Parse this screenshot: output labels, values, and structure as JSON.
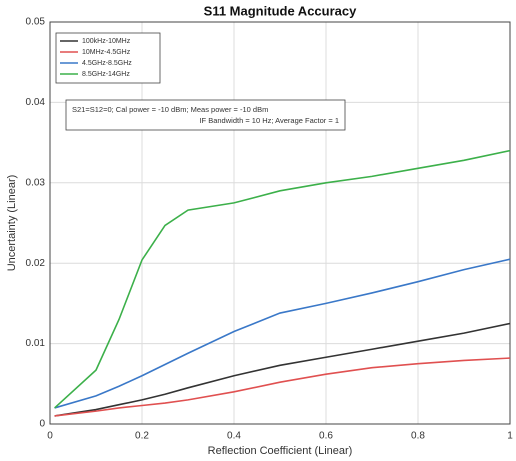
{
  "chart_data": {
    "type": "line",
    "title": "S11 Magnitude Accuracy",
    "xlabel": "Reflection Coefficient (Linear)",
    "ylabel": "Uncertainty (Linear)",
    "annotations": [
      "S21=S12=0;  Cal power = -10 dBm;  Meas power = -10 dBm",
      "IF Bandwidth = 10 Hz;  Average Factor = 1"
    ],
    "x": [
      0.01,
      0.1,
      0.15,
      0.2,
      0.25,
      0.3,
      0.4,
      0.5,
      0.6,
      0.7,
      0.8,
      0.9,
      1
    ],
    "series": [
      {
        "name": "100kHz-10MHz",
        "color": "#333333",
        "values": [
          0.001,
          0.0018,
          0.0024,
          0.003,
          0.0037,
          0.0045,
          0.006,
          0.0073,
          0.0083,
          0.0093,
          0.0103,
          0.0113,
          0.0125
        ]
      },
      {
        "name": "10MHz-4.5GHz",
        "color": "#e05050",
        "values": [
          0.001,
          0.0016,
          0.002,
          0.0023,
          0.0026,
          0.003,
          0.004,
          0.0052,
          0.0062,
          0.007,
          0.0075,
          0.0079,
          0.0082
        ]
      },
      {
        "name": "4.5GHz-8.5GHz",
        "color": "#3a78c8",
        "values": [
          0.002,
          0.0035,
          0.0047,
          0.006,
          0.0074,
          0.0088,
          0.0115,
          0.0138,
          0.015,
          0.0163,
          0.0177,
          0.0192,
          0.0205
        ]
      },
      {
        "name": "8.5GHz-14GHz",
        "color": "#3cb04a",
        "values": [
          0.002,
          0.0067,
          0.013,
          0.0204,
          0.0247,
          0.0266,
          0.0275,
          0.029,
          0.03,
          0.0308,
          0.0318,
          0.0328,
          0.034
        ]
      }
    ],
    "xlim": [
      0,
      1
    ],
    "xticks": [
      0,
      0.2,
      0.4,
      0.6,
      0.8,
      1
    ],
    "ylim": [
      0,
      0.05
    ],
    "yticks": [
      0,
      0.01,
      0.02,
      0.03,
      0.04,
      0.05
    ],
    "grid": true,
    "legend": "upper-left"
  }
}
